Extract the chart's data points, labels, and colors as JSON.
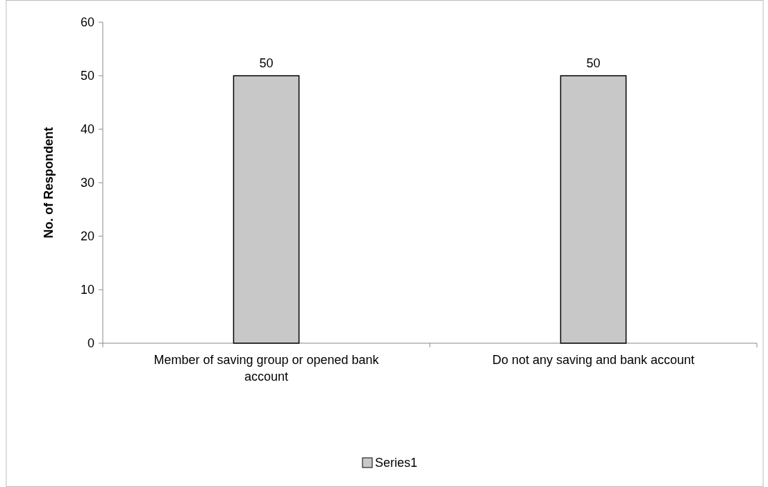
{
  "chart_data": {
    "type": "bar",
    "ylabel": "No. of Respondent",
    "categories": [
      "Member of saving group or opened bank account",
      "Do not any saving and bank account"
    ],
    "series": [
      {
        "name": "Series1",
        "color": "#c8c8c8",
        "values": [
          50,
          50
        ]
      }
    ],
    "ylim": [
      0,
      60
    ],
    "yticks": [
      0,
      10,
      20,
      30,
      40,
      50,
      60
    ],
    "data_labels": true,
    "legend": "bottom",
    "grid": false
  }
}
